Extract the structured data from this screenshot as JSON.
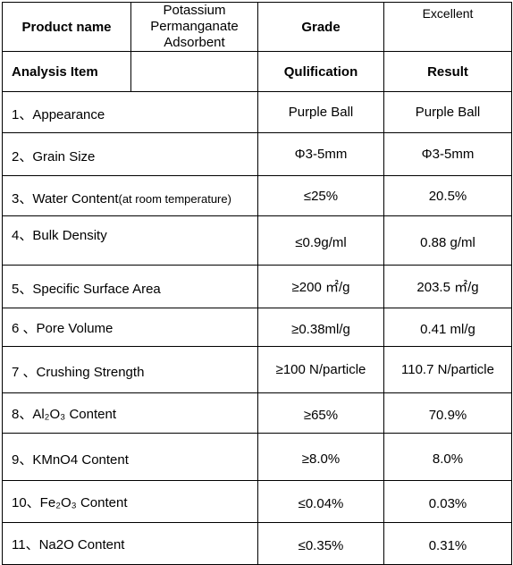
{
  "header": {
    "product_name_label": "Product name",
    "product_name_value_line1": "Potassium Permanganate",
    "product_name_value_line2": "Adsorbent",
    "grade_label": "Grade",
    "grade_value": "Excellent"
  },
  "columns": {
    "analysis_item": "Analysis Item",
    "qualification": "Qulification",
    "result": "Result"
  },
  "rows": [
    {
      "item": "1、Appearance",
      "item_note": "",
      "qualification": "Purple Ball",
      "result": "Purple Ball"
    },
    {
      "item": "2、Grain Size",
      "item_note": "",
      "qualification": "Φ3-5mm",
      "result": "Φ3-5mm"
    },
    {
      "item": "3、Water Content",
      "item_note": "(at room temperature)",
      "qualification": "≤25%",
      "result": "20.5%"
    },
    {
      "item": "4、Bulk Density",
      "item_note": "",
      "qualification": "≤0.9g/ml",
      "result": "0.88 g/ml"
    },
    {
      "item": "5、Specific Surface Area",
      "item_note": "",
      "qualification": "≥200 ㎡/g",
      "result": "203.5 ㎡/g"
    },
    {
      "item": "6 、Pore Volume",
      "item_note": "",
      "qualification": "≥0.38ml/g",
      "result": "0.41 ml/g"
    },
    {
      "item": "7 、Crushing Strength",
      "item_note": "",
      "qualification": "≥100 N/particle",
      "result": "110.7 N/particle"
    },
    {
      "item": "8、Al₂O₃ Content",
      "item_note": "",
      "qualification": "≥65%",
      "result": "70.9%"
    },
    {
      "item": "9、KMnO4 Content",
      "item_note": "",
      "qualification": "≥8.0%",
      "result": "8.0%"
    },
    {
      "item": "10、Fe₂O₃ Content",
      "item_note": "",
      "qualification": "≤0.04%",
      "result": "0.03%"
    },
    {
      "item": "11、Na2O Content",
      "item_note": "",
      "qualification": "≤0.35%",
      "result": "0.31%"
    }
  ]
}
